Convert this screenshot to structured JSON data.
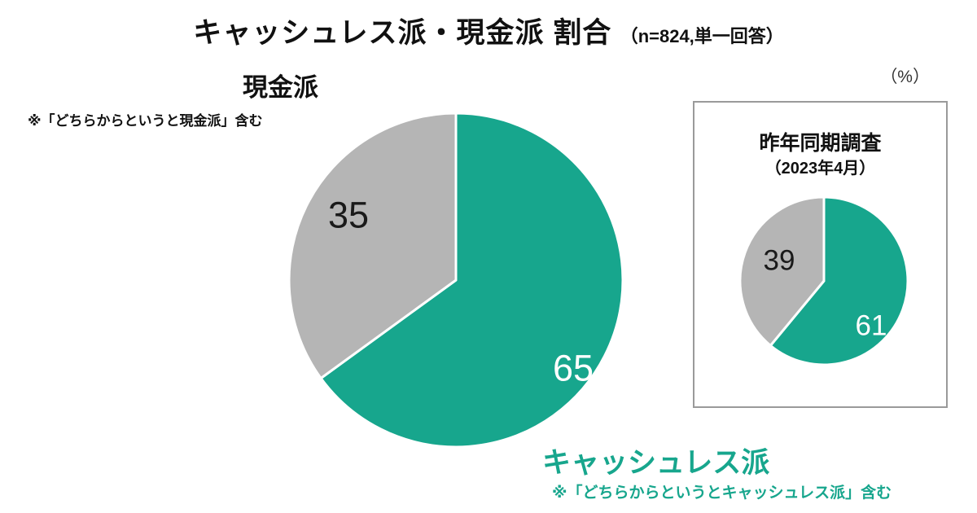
{
  "header": {
    "title": "キャッシュレス派・現金派 割合",
    "sample_note": "（n=824,単一回答）",
    "unit_label": "（%）"
  },
  "annotations": {
    "cash_label": "現金派",
    "cash_note": "※「どちらからというと現金派」含む",
    "cashless_label": "キャッシュレス派",
    "cashless_note": "※「どちらからというとキャッシュレス派」含む"
  },
  "inset": {
    "title": "昨年同期調査",
    "subtitle": "（2023年4月）"
  },
  "colors": {
    "cashless": "#17a68d",
    "cash": "#b5b5b5",
    "cashless_text": "#17a68d"
  },
  "chart_data": [
    {
      "type": "pie",
      "title": "キャッシュレス派・現金派 割合",
      "sample": "n=824,単一回答",
      "unit": "%",
      "start_angle_deg": 0,
      "direction": "clockwise",
      "slices": [
        {
          "label": "キャッシュレス派",
          "value": 65,
          "color": "#17a68d",
          "note": "※「どちらからというとキャッシュレス派」含む"
        },
        {
          "label": "現金派",
          "value": 35,
          "color": "#b5b5b5",
          "note": "※「どちらからというと現金派」含む"
        }
      ]
    },
    {
      "type": "pie",
      "title": "昨年同期調査",
      "subtitle": "（2023年4月）",
      "unit": "%",
      "start_angle_deg": 0,
      "direction": "clockwise",
      "slices": [
        {
          "label": "キャッシュレス派",
          "value": 61,
          "color": "#17a68d"
        },
        {
          "label": "現金派",
          "value": 39,
          "color": "#b5b5b5"
        }
      ]
    }
  ]
}
